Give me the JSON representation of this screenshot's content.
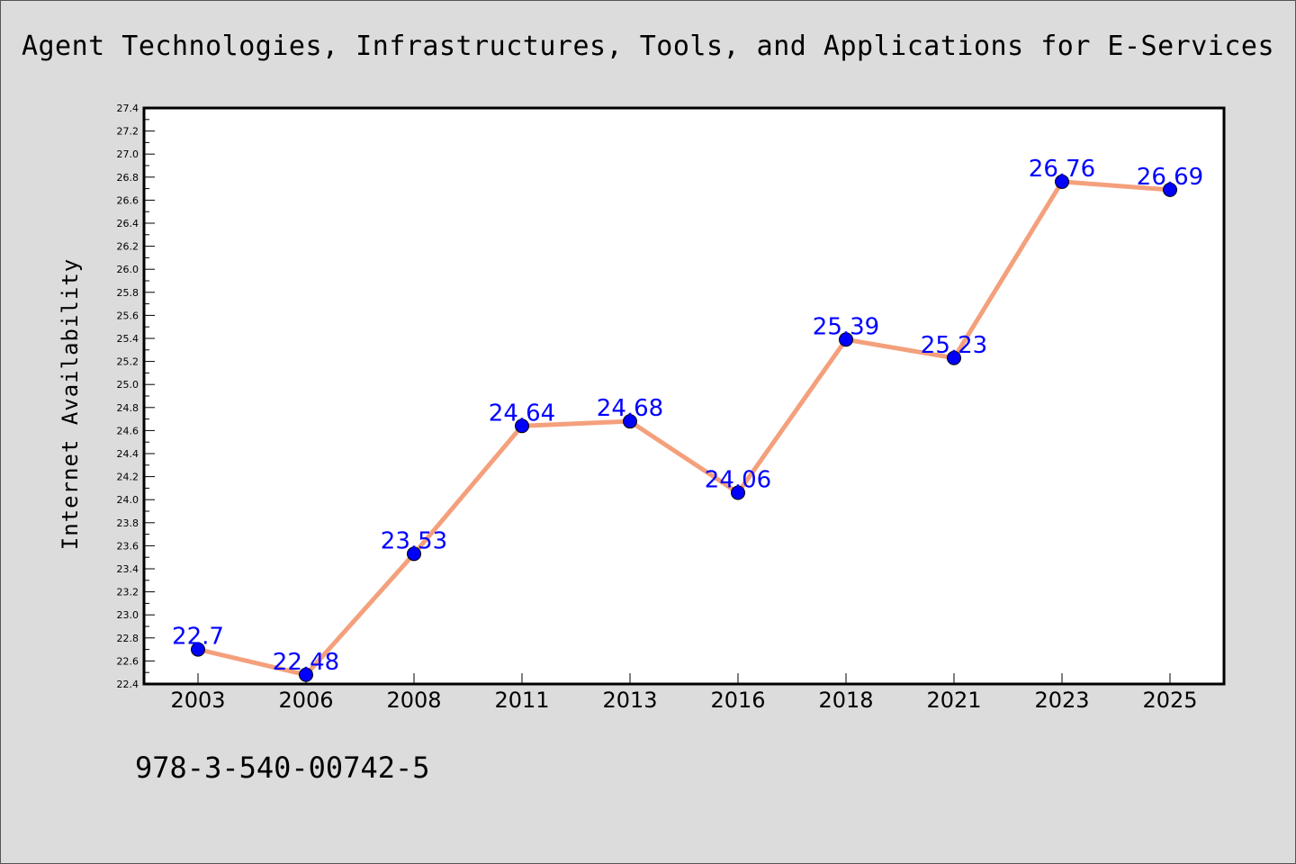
{
  "chart_data": {
    "type": "line",
    "title": "Agent Technologies, Infrastructures, Tools, and Applications for E-Services",
    "xlabel": "",
    "ylabel": "Internet Availability",
    "categories": [
      "2003",
      "2006",
      "2008",
      "2011",
      "2013",
      "2016",
      "2018",
      "2021",
      "2023",
      "2025"
    ],
    "series": [
      {
        "values": [
          22.7,
          22.48,
          23.53,
          24.64,
          24.68,
          24.06,
          25.39,
          25.23,
          26.76,
          26.69
        ]
      }
    ],
    "data_labels": [
      "22.7",
      "22.48",
      "23.53",
      "24.64",
      "24.68",
      "24.06",
      "25.39",
      "25.23",
      "26.76",
      "26.69"
    ],
    "ylim": [
      22.4,
      27.4
    ],
    "y_ticks": [
      "22.4",
      "22.6",
      "22.8",
      "23.0",
      "23.2",
      "23.4",
      "23.6",
      "23.8",
      "24.0",
      "24.2",
      "24.4",
      "24.6",
      "24.8",
      "25.0",
      "25.2",
      "25.4",
      "25.6",
      "25.8",
      "26.0",
      "26.2",
      "26.4",
      "26.6",
      "26.8",
      "27.0",
      "27.2",
      "27.4"
    ],
    "grid": false,
    "legend": "none",
    "colors": {
      "line": "#f4a07c",
      "marker": "#0000ff",
      "label": "#0000ff",
      "background": "#dcdcdc",
      "plot_bg": "#ffffff"
    }
  },
  "footer": {
    "isbn": "978-3-540-00742-5"
  }
}
